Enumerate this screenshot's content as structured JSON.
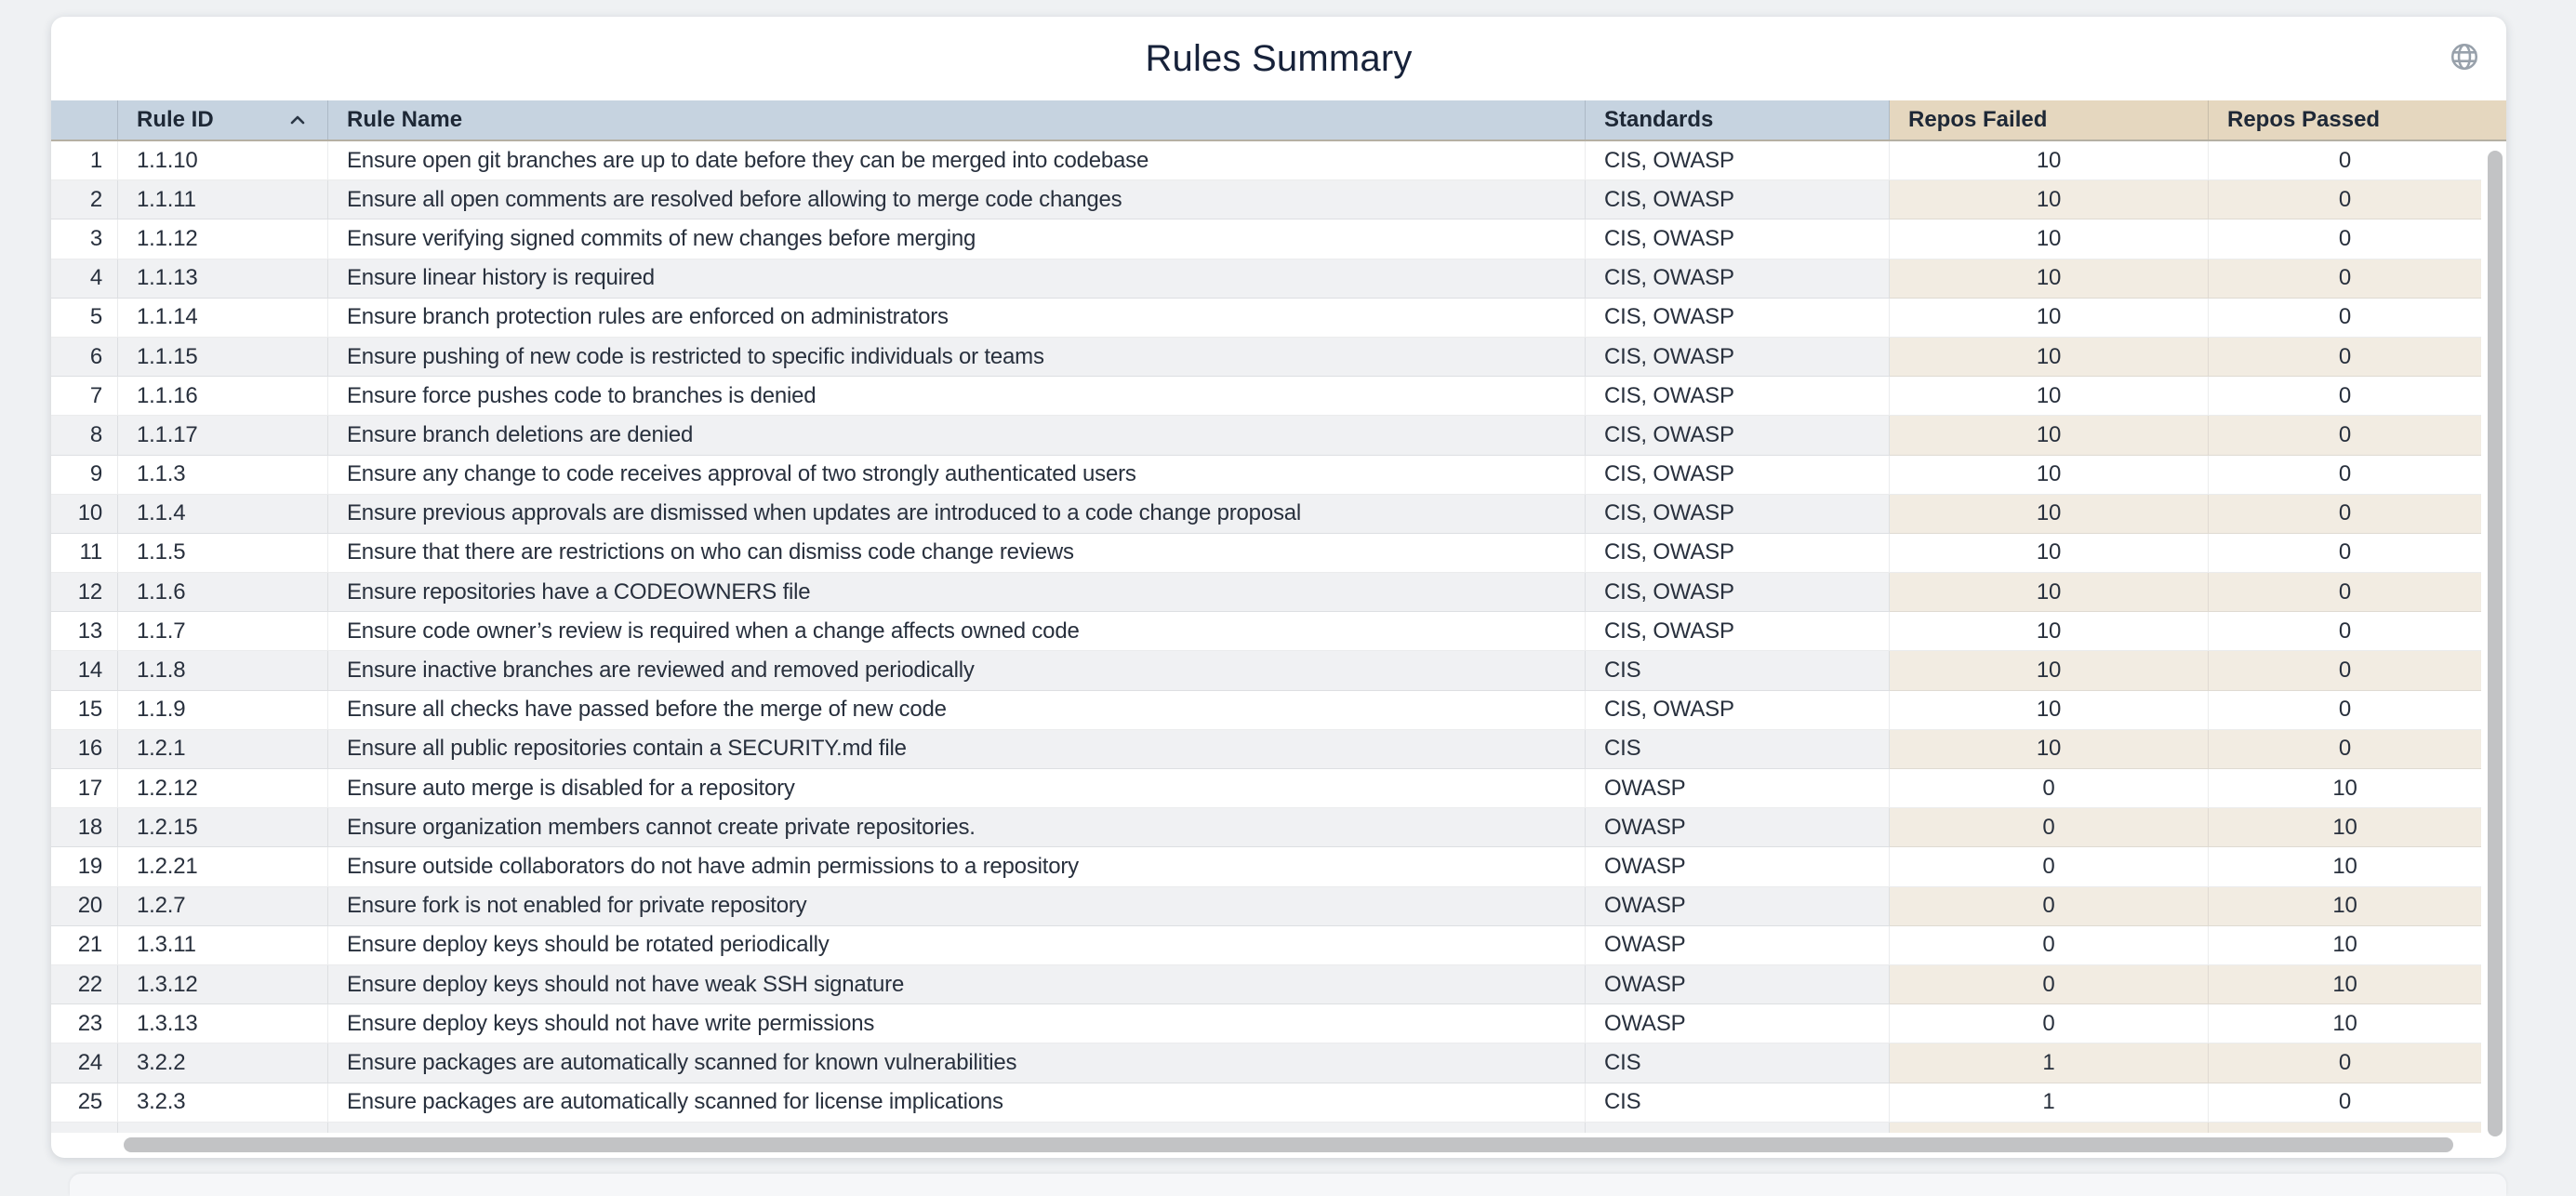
{
  "title": "Rules Summary",
  "header_icon": "globe-icon",
  "colors": {
    "header_primary": "#c6d3e0",
    "header_accent_tan": "#e5d7bf",
    "row_alt_gray": "#f0f1f3",
    "row_alt_warm": "#f2ece2",
    "title_text": "#17223a",
    "scrollbar_thumb": "#c2c3c5"
  },
  "table": {
    "columns": [
      {
        "key": "index",
        "label": "",
        "sortable": false
      },
      {
        "key": "rule_id",
        "label": "Rule ID",
        "sortable": true,
        "sorted": "asc"
      },
      {
        "key": "rule_name",
        "label": "Rule Name",
        "sortable": true
      },
      {
        "key": "standards",
        "label": "Standards",
        "sortable": true
      },
      {
        "key": "repos_failed",
        "label": "Repos Failed",
        "sortable": true
      },
      {
        "key": "repos_passed",
        "label": "Repos Passed",
        "sortable": true
      }
    ],
    "rows": [
      {
        "index": 1,
        "rule_id": "1.1.10",
        "rule_name": "Ensure open git branches are up to date before they can be merged into codebase",
        "standards": "CIS, OWASP",
        "repos_failed": 10,
        "repos_passed": 0
      },
      {
        "index": 2,
        "rule_id": "1.1.11",
        "rule_name": "Ensure all open comments are resolved before allowing to merge code changes",
        "standards": "CIS, OWASP",
        "repos_failed": 10,
        "repos_passed": 0
      },
      {
        "index": 3,
        "rule_id": "1.1.12",
        "rule_name": "Ensure verifying signed commits of new changes before merging",
        "standards": "CIS, OWASP",
        "repos_failed": 10,
        "repos_passed": 0
      },
      {
        "index": 4,
        "rule_id": "1.1.13",
        "rule_name": "Ensure linear history is required",
        "standards": "CIS, OWASP",
        "repos_failed": 10,
        "repos_passed": 0
      },
      {
        "index": 5,
        "rule_id": "1.1.14",
        "rule_name": "Ensure branch protection rules are enforced on administrators",
        "standards": "CIS, OWASP",
        "repos_failed": 10,
        "repos_passed": 0
      },
      {
        "index": 6,
        "rule_id": "1.1.15",
        "rule_name": "Ensure pushing of new code is restricted to specific individuals or teams",
        "standards": "CIS, OWASP",
        "repos_failed": 10,
        "repos_passed": 0
      },
      {
        "index": 7,
        "rule_id": "1.1.16",
        "rule_name": "Ensure force pushes code to branches is denied",
        "standards": "CIS, OWASP",
        "repos_failed": 10,
        "repos_passed": 0
      },
      {
        "index": 8,
        "rule_id": "1.1.17",
        "rule_name": "Ensure branch deletions are denied",
        "standards": "CIS, OWASP",
        "repos_failed": 10,
        "repos_passed": 0
      },
      {
        "index": 9,
        "rule_id": "1.1.3",
        "rule_name": "Ensure any change to code receives approval of two strongly authenticated users",
        "standards": "CIS, OWASP",
        "repos_failed": 10,
        "repos_passed": 0
      },
      {
        "index": 10,
        "rule_id": "1.1.4",
        "rule_name": "Ensure previous approvals are dismissed when updates are introduced to a code change proposal",
        "standards": "CIS, OWASP",
        "repos_failed": 10,
        "repos_passed": 0
      },
      {
        "index": 11,
        "rule_id": "1.1.5",
        "rule_name": "Ensure that there are restrictions on who can dismiss code change reviews",
        "standards": "CIS, OWASP",
        "repos_failed": 10,
        "repos_passed": 0
      },
      {
        "index": 12,
        "rule_id": "1.1.6",
        "rule_name": "Ensure repositories have a CODEOWNERS file",
        "standards": "CIS, OWASP",
        "repos_failed": 10,
        "repos_passed": 0
      },
      {
        "index": 13,
        "rule_id": "1.1.7",
        "rule_name": "Ensure code owner’s review is required when a change affects owned code",
        "standards": "CIS, OWASP",
        "repos_failed": 10,
        "repos_passed": 0
      },
      {
        "index": 14,
        "rule_id": "1.1.8",
        "rule_name": "Ensure inactive branches are reviewed and removed periodically",
        "standards": "CIS",
        "repos_failed": 10,
        "repos_passed": 0
      },
      {
        "index": 15,
        "rule_id": "1.1.9",
        "rule_name": "Ensure all checks have passed before the merge of new code",
        "standards": "CIS, OWASP",
        "repos_failed": 10,
        "repos_passed": 0
      },
      {
        "index": 16,
        "rule_id": "1.2.1",
        "rule_name": "Ensure all public repositories contain a SECURITY.md file",
        "standards": "CIS",
        "repos_failed": 10,
        "repos_passed": 0
      },
      {
        "index": 17,
        "rule_id": "1.2.12",
        "rule_name": "Ensure auto merge is disabled for a repository",
        "standards": "OWASP",
        "repos_failed": 0,
        "repos_passed": 10
      },
      {
        "index": 18,
        "rule_id": "1.2.15",
        "rule_name": "Ensure organization members cannot create private repositories.",
        "standards": "OWASP",
        "repos_failed": 0,
        "repos_passed": 10
      },
      {
        "index": 19,
        "rule_id": "1.2.21",
        "rule_name": "Ensure outside collaborators do not have admin permissions to a repository",
        "standards": "OWASP",
        "repos_failed": 0,
        "repos_passed": 10
      },
      {
        "index": 20,
        "rule_id": "1.2.7",
        "rule_name": "Ensure fork is not enabled for private repository",
        "standards": "OWASP",
        "repos_failed": 0,
        "repos_passed": 10
      },
      {
        "index": 21,
        "rule_id": "1.3.11",
        "rule_name": "Ensure deploy keys should be rotated periodically",
        "standards": "OWASP",
        "repos_failed": 0,
        "repos_passed": 10
      },
      {
        "index": 22,
        "rule_id": "1.3.12",
        "rule_name": "Ensure deploy keys should not have weak SSH signature",
        "standards": "OWASP",
        "repos_failed": 0,
        "repos_passed": 10
      },
      {
        "index": 23,
        "rule_id": "1.3.13",
        "rule_name": "Ensure deploy keys should not have write permissions",
        "standards": "OWASP",
        "repos_failed": 0,
        "repos_passed": 10
      },
      {
        "index": 24,
        "rule_id": "3.2.2",
        "rule_name": "Ensure packages are automatically scanned for known vulnerabilities",
        "standards": "CIS",
        "repos_failed": 1,
        "repos_passed": 0
      },
      {
        "index": 25,
        "rule_id": "3.2.3",
        "rule_name": "Ensure packages are automatically scanned for license implications",
        "standards": "CIS",
        "repos_failed": 1,
        "repos_passed": 0
      }
    ],
    "partial_next_row": true
  }
}
